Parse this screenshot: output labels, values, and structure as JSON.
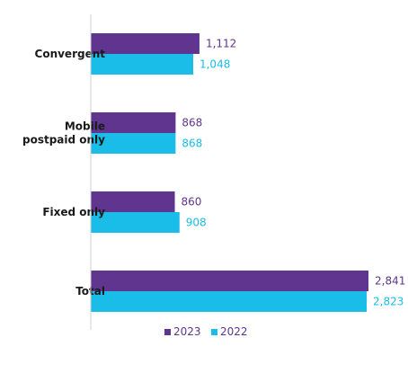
{
  "chart_data": {
    "type": "bar",
    "orientation": "horizontal",
    "categories": [
      "Convergent",
      "Mobile\npostpaid only",
      "Fixed only",
      "Total"
    ],
    "series": [
      {
        "name": "2023",
        "values": [
          1112,
          868,
          860,
          2841
        ],
        "labels": [
          "1,112",
          "868",
          "860",
          "2,841"
        ],
        "color": "#5f3590"
      },
      {
        "name": "2022",
        "values": [
          1048,
          868,
          908,
          2823
        ],
        "labels": [
          "1,048",
          "868",
          "908",
          "2,823"
        ],
        "color": "#19bde8"
      }
    ],
    "xlim": [
      0,
      2841
    ],
    "legend": "bottom-center",
    "grid": false
  }
}
